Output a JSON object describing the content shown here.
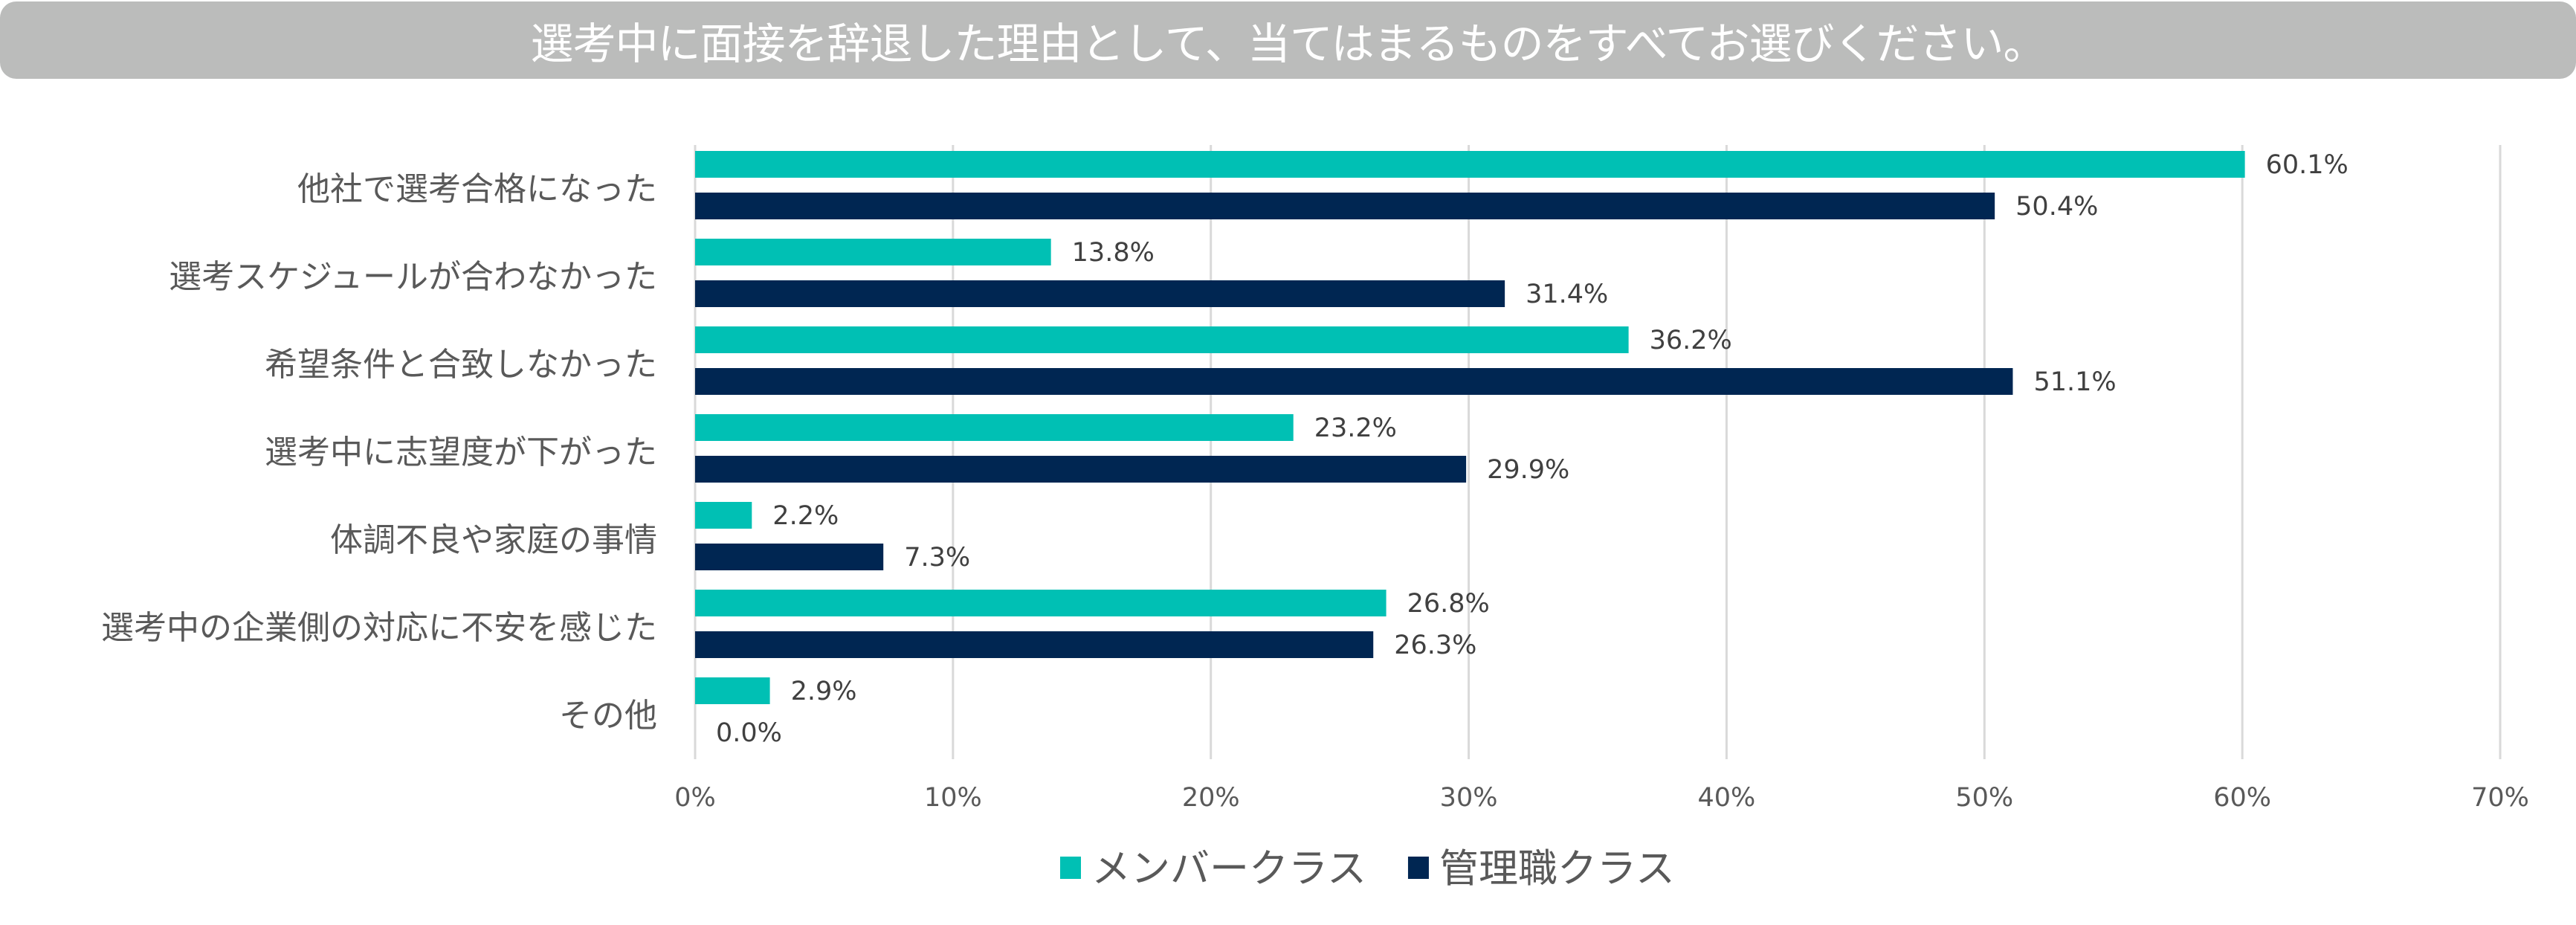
{
  "title": "選考中に面接を辞退した理由として、当てはまるものをすべてお選びください。",
  "chart_data": {
    "type": "bar",
    "orientation": "horizontal",
    "title": "選考中に面接を辞退した理由として、当てはまるものをすべてお選びください。",
    "categories": [
      "他社で選考合格になった",
      "選考スケジュールが合わなかった",
      "希望条件と合致しなかった",
      "選考中に志望度が下がった",
      "体調不良や家庭の事情",
      "選考中の企業側の対応に不安を感じた",
      "その他"
    ],
    "series": [
      {
        "name": "メンバークラス",
        "color": "#00c0b4",
        "values": [
          60.1,
          13.8,
          36.2,
          23.2,
          2.2,
          26.8,
          2.9
        ]
      },
      {
        "name": "管理職クラス",
        "color": "#002652",
        "values": [
          50.4,
          31.4,
          51.1,
          29.9,
          7.3,
          26.3,
          0.0
        ]
      }
    ],
    "xlim": [
      0,
      70
    ],
    "xticks": [
      "0%",
      "10%",
      "20%",
      "30%",
      "40%",
      "50%",
      "60%",
      "70%"
    ],
    "grid": true,
    "legend": "bottom",
    "value_format": "percent, 1 decimal"
  }
}
